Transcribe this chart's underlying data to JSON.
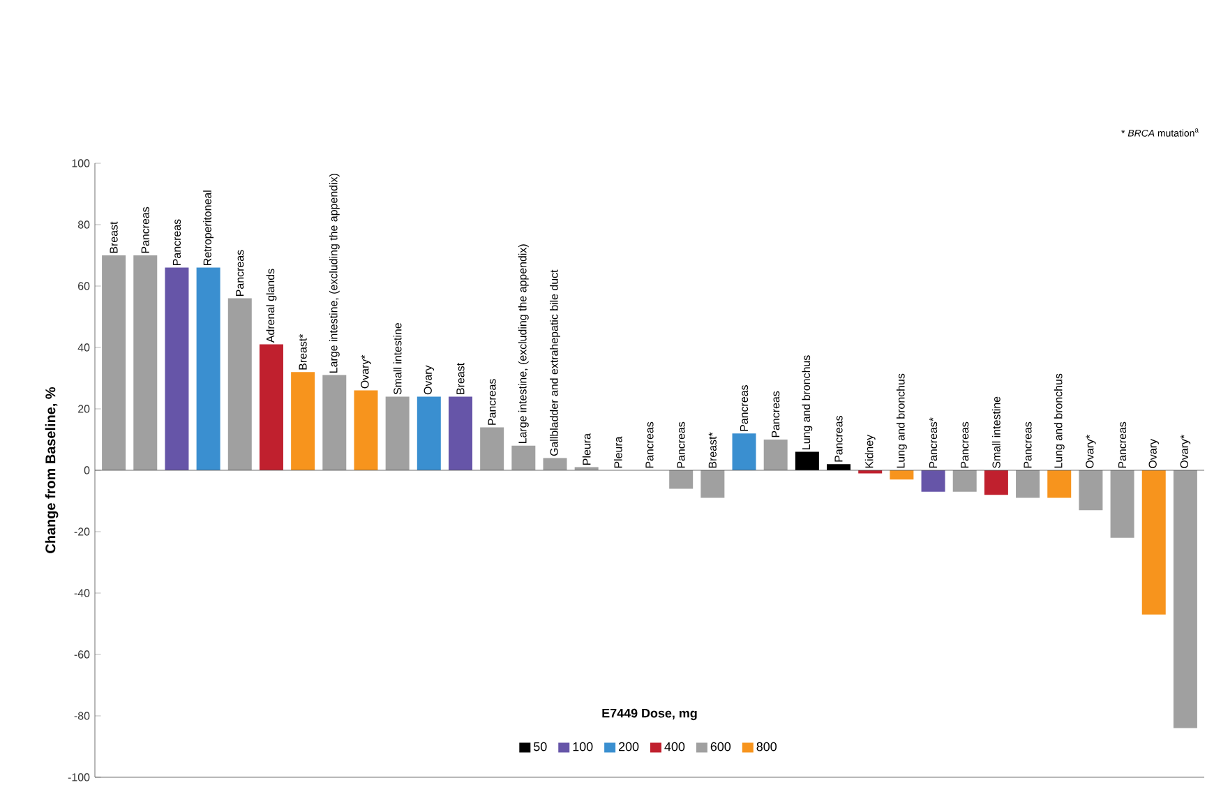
{
  "chart_data": {
    "type": "bar",
    "ylabel": "Change from Baseline, %",
    "legend_title": "E7449 Dose, mg",
    "annotations": [
      "* *BRCA* mutation$^{a}$"
    ],
    "categories": [
      "Breast",
      "Pancreas",
      "Pancreas",
      "Retroperitoneal",
      "Pancreas",
      "Adrenal glands",
      "Breast*",
      "Large intestine, (excluding the appendix)",
      "Ovary*",
      "Small intestine",
      "Ovary",
      "Breast",
      "Pancreas",
      "Large intestine, (excluding the appendix)",
      "Gallbladder and extrahepatic bile duct",
      "Pleura",
      "Pleura",
      "Pancreas",
      "Pancreas",
      "Breast*",
      "Pancreas",
      "Pancreas",
      "Lung and bronchus",
      "Pancreas",
      "Kidney",
      "Lung and bronchus",
      "Pancreas*",
      "Pancreas",
      "Small intestine",
      "Pancreas",
      "Lung and bronchus",
      "Ovary*",
      "Pancreas",
      "Ovary",
      "Ovary*"
    ],
    "series": [
      {
        "name": "50",
        "color": "#000000",
        "values": [
          null,
          null,
          null,
          null,
          null,
          null,
          null,
          null,
          null,
          null,
          null,
          null,
          null,
          null,
          null,
          null,
          null,
          null,
          null,
          null,
          null,
          null,
          6,
          2,
          null,
          null,
          null,
          null,
          null,
          null,
          null,
          null,
          null,
          null,
          null
        ]
      },
      {
        "name": "100",
        "color": "#6655a8",
        "values": [
          null,
          null,
          66,
          null,
          null,
          null,
          null,
          null,
          null,
          null,
          null,
          24,
          null,
          null,
          null,
          null,
          null,
          null,
          null,
          null,
          null,
          null,
          null,
          null,
          null,
          null,
          -7,
          null,
          null,
          null,
          null,
          null,
          null,
          null,
          null
        ]
      },
      {
        "name": "200",
        "color": "#3a8fd0",
        "values": [
          null,
          null,
          null,
          66,
          null,
          null,
          null,
          null,
          null,
          null,
          24,
          null,
          null,
          null,
          null,
          null,
          null,
          null,
          null,
          null,
          12,
          null,
          null,
          null,
          null,
          null,
          null,
          null,
          null,
          null,
          null,
          null,
          null,
          null,
          null
        ]
      },
      {
        "name": "400",
        "color": "#c0202e",
        "values": [
          null,
          null,
          null,
          null,
          null,
          41,
          null,
          null,
          null,
          null,
          null,
          null,
          null,
          null,
          null,
          null,
          null,
          null,
          null,
          null,
          null,
          null,
          null,
          null,
          -1,
          null,
          null,
          null,
          -8,
          null,
          null,
          null,
          null,
          null,
          null
        ]
      },
      {
        "name": "600",
        "color": "#a0a0a0",
        "values": [
          70,
          70,
          null,
          null,
          56,
          null,
          null,
          31,
          null,
          24,
          null,
          null,
          14,
          8,
          4,
          1,
          0,
          0,
          -6,
          -9,
          null,
          10,
          null,
          null,
          null,
          null,
          null,
          -7,
          null,
          -9,
          null,
          -13,
          -22,
          null,
          -84
        ]
      },
      {
        "name": "800",
        "color": "#f7941d",
        "values": [
          null,
          null,
          null,
          null,
          null,
          null,
          32,
          null,
          26,
          null,
          null,
          null,
          null,
          null,
          null,
          null,
          null,
          null,
          null,
          null,
          null,
          null,
          null,
          null,
          null,
          -3,
          null,
          null,
          null,
          null,
          -9,
          null,
          null,
          -47,
          null
        ]
      }
    ],
    "ylim": [
      -100,
      100
    ],
    "yticks": [
      -100,
      -80,
      -60,
      -40,
      -20,
      0,
      20,
      40,
      60,
      80,
      100
    ],
    "legend": "bottom"
  }
}
